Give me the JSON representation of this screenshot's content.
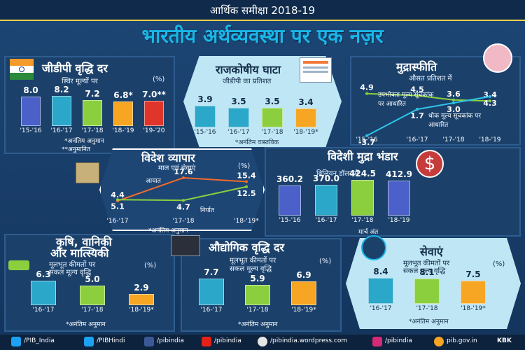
{
  "header": {
    "top": "आर्थिक समीक्षा 2018-19",
    "title": "भारतीय अर्थव्यवस्था पर एक नज़र"
  },
  "gdp": {
    "title": "जीडीपी वृद्धि दर",
    "subtitle": "स्थिर मूल्यों पर",
    "unit": "(%)",
    "categories": [
      "'15-'16",
      "'16-'17",
      "'17-'18",
      "'18-'19",
      "'19-'20"
    ],
    "values": [
      8.0,
      8.2,
      7.2,
      6.8,
      7.0
    ],
    "value_labels": [
      "8.0",
      "8.2",
      "7.2",
      "6.8*",
      "7.0**"
    ],
    "colors": [
      "#4b61c9",
      "#2aa7c9",
      "#8ccf3e",
      "#f6a623",
      "#e0352b"
    ],
    "note1": "*अनंतिम अनुमान",
    "note2": "**अनुमानित"
  },
  "fiscal": {
    "title": "राजकोषीय घाटा",
    "subtitle": "जीडीपी का प्रतिशत",
    "categories": [
      "'15-'16",
      "'16-'17",
      "'17-'18",
      "'18-'19*"
    ],
    "values": [
      3.9,
      3.5,
      3.5,
      3.4
    ],
    "value_labels": [
      "3.9",
      "3.5",
      "3.5",
      "3.4"
    ],
    "colors": [
      "#2aa7c9",
      "#2aa7c9",
      "#8ccf3e",
      "#f6a623"
    ],
    "note": "*अनंतिम वास्तविक"
  },
  "inflation": {
    "title": "मुद्रास्फीति",
    "subtitle": "औसत प्रतिशत में",
    "cpi_label": "उपभोक्ता मूल्य सूचकांक पर आधारित",
    "wpi_label": "थोक मूल्य सूचकांक पर आधारित",
    "categories": [
      "'15-'16",
      "'16-'17",
      "'17-'18",
      "'18-'19"
    ],
    "cpi": [
      4.9,
      4.5,
      3.6,
      3.4
    ],
    "wpi": [
      -3.7,
      1.7,
      3.0,
      4.3
    ],
    "cpi_labels": [
      "4.9",
      "4.5",
      "3.6",
      "3.4"
    ],
    "wpi_labels": [
      "-3.7",
      "1.7",
      "3.0",
      "4.3"
    ]
  },
  "trade": {
    "title": "विदेश व्यापार",
    "subtitle": "माल एवं सेवाएं",
    "unit": "(%)",
    "import_label": "आयात",
    "export_label": "निर्यात",
    "categories": [
      "'16-'17",
      "'17-'18",
      "'18-'19*"
    ],
    "imports": [
      4.4,
      17.6,
      15.4
    ],
    "exports": [
      5.1,
      4.7,
      12.5
    ],
    "import_labels": [
      "4.4",
      "17.6",
      "15.4"
    ],
    "export_labels": [
      "5.1",
      "4.7",
      "12.5"
    ],
    "note": "*अनंतिम अनुमान"
  },
  "forex": {
    "title": "विदेशी मुद्रा भंडार",
    "subtitle": "बिलियन डॉलर में",
    "categories": [
      "'15-'16",
      "'16-'17",
      "'17-'18",
      "'18-'19"
    ],
    "values": [
      360.2,
      370.0,
      424.5,
      412.9
    ],
    "value_labels": [
      "360.2",
      "370.0",
      "424.5",
      "412.9"
    ],
    "colors": [
      "#4b61c9",
      "#2aa7c9",
      "#8ccf3e",
      "#4b61c9"
    ],
    "note": "मार्च अंत"
  },
  "agri": {
    "title1": "कृषि, वानिकी",
    "title2": "और मात्स्यिकी",
    "subtitle1": "मूलभूत कीमतों पर",
    "subtitle2": "सकल मूल्य वृद्धि",
    "unit": "(%)",
    "categories": [
      "'16-'17",
      "'17-'18",
      "'18-'19*"
    ],
    "values": [
      6.3,
      5.0,
      2.9
    ],
    "value_labels": [
      "6.3",
      "5.0",
      "2.9"
    ],
    "colors": [
      "#2aa7c9",
      "#8ccf3e",
      "#f6a623"
    ],
    "note": "*अनंतिम अनुमान"
  },
  "industry": {
    "title": "औद्योगिक वृद्धि दर",
    "subtitle1": "मूलभूत कीमतों पर",
    "subtitle2": "सकल मूल्य वृद्धि",
    "unit": "(%)",
    "categories": [
      "'16-'17",
      "'17-'18",
      "'18-'19*"
    ],
    "values": [
      7.7,
      5.9,
      6.9
    ],
    "value_labels": [
      "7.7",
      "5.9",
      "6.9"
    ],
    "colors": [
      "#2aa7c9",
      "#8ccf3e",
      "#f6a623"
    ],
    "note": "*अनंतिम अनुमान"
  },
  "services": {
    "title": "सेवाएं",
    "subtitle1": "मूलभूत कीमतों पर",
    "subtitle2": "सकल मूल्य वृद्धि",
    "unit": "(%)",
    "categories": [
      "'16-'17",
      "'17-'18",
      "'18-'19*"
    ],
    "values": [
      8.4,
      8.1,
      7.5
    ],
    "value_labels": [
      "8.4",
      "8.1",
      "7.5"
    ],
    "colors": [
      "#2aa7c9",
      "#8ccf3e",
      "#f6a623"
    ],
    "note": "*अनंतिम अनुमान"
  },
  "footer": {
    "items": [
      "/PIB_India",
      "/PIBHindi",
      "/pibindia",
      "/pibindia",
      "/pibindia.wordpress.com",
      "/pibindia",
      "pib.gov.in"
    ],
    "brand": "KBK"
  }
}
